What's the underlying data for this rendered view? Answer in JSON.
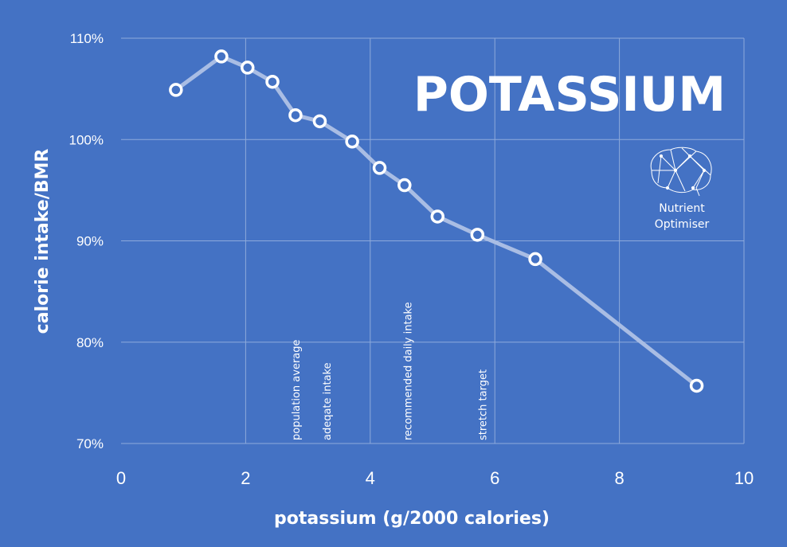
{
  "chart_data": {
    "type": "line",
    "title": "POTASSIUM",
    "xlabel": "potassium (g/2000 calories)",
    "ylabel": "calorie intake/BMR",
    "xlim": [
      0,
      10
    ],
    "ylim": [
      70,
      110
    ],
    "x_ticks": [
      0,
      2,
      4,
      6,
      8,
      10
    ],
    "x_tick_labels": [
      "0",
      "2",
      "4",
      "6",
      "8",
      "10"
    ],
    "y_ticks": [
      70,
      80,
      90,
      100,
      110
    ],
    "y_tick_labels": [
      "70%",
      "80%",
      "90%",
      "100%",
      "110%"
    ],
    "grid": true,
    "series": [
      {
        "x": [
          0.88,
          1.61,
          2.03,
          2.43,
          2.8,
          3.19,
          3.71,
          4.15,
          4.55,
          5.08,
          5.72,
          6.65,
          9.24
        ],
        "y": [
          104.9,
          108.2,
          107.1,
          105.7,
          102.4,
          101.8,
          99.8,
          97.2,
          95.5,
          92.4,
          90.6,
          88.2,
          75.7
        ]
      }
    ],
    "annotations": [
      {
        "text": "population average",
        "x": 2.8
      },
      {
        "text": "adeqate intake",
        "x": 3.3
      },
      {
        "text": "recommended daily intake",
        "x": 4.6
      },
      {
        "text": "stretch target",
        "x": 5.8
      }
    ],
    "colors": {
      "background": "#4472c4",
      "line": "#a9bde4",
      "marker_fill": "#4472c4",
      "marker_edge": "#ffffff",
      "grid": "#8eaadb"
    }
  },
  "logo": {
    "line1": "Nutrient",
    "line2": "Optimiser",
    "icon": "brain-icon"
  }
}
